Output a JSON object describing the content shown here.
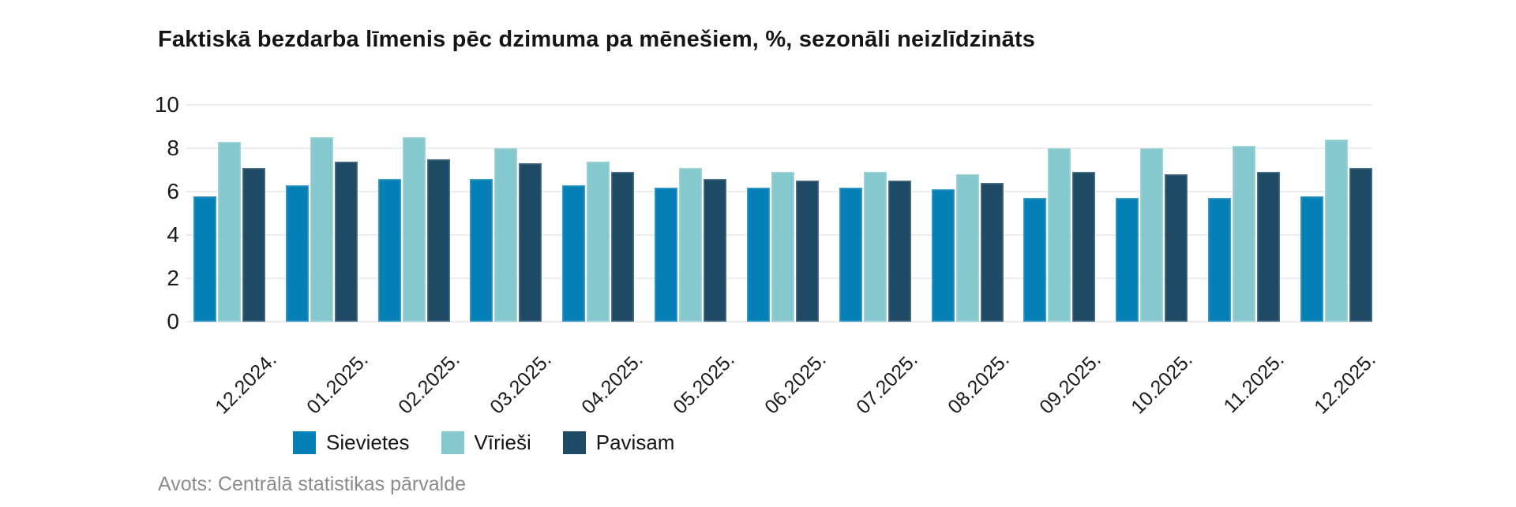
{
  "title": "Faktiskā bezdarba līmenis pēc dzimuma pa mēnešiem, %, sezonāli neizlīdzināts",
  "source": "Avots: Centrālā statistikas pārvalde",
  "colors": {
    "sievietes": "#0480b6",
    "viriesi": "#85c8cd",
    "pavisam": "#1e4a66",
    "gridline": "#ededed",
    "axis_text": "#1a1a1a",
    "source_text": "#8b8b8b",
    "background": "#ffffff"
  },
  "chart_data": {
    "type": "bar",
    "title": "Faktiskā bezdarba līmenis pēc dzimuma pa mēnešiem, %, sezonāli neizlīdzināts",
    "xlabel": "",
    "ylabel": "",
    "ylim": [
      0,
      10
    ],
    "yticks": [
      0,
      2,
      4,
      6,
      8,
      10
    ],
    "grid": true,
    "legend_position": "bottom",
    "categories": [
      "12.2024.",
      "01.2025.",
      "02.2025.",
      "03.2025.",
      "04.2025.",
      "05.2025.",
      "06.2025.",
      "07.2025.",
      "08.2025.",
      "09.2025.",
      "10.2025.",
      "11.2025.",
      "12.2025."
    ],
    "series": [
      {
        "name": "Sievietes",
        "key": "sievietes",
        "color": "#0480b6",
        "values": [
          5.8,
          6.3,
          6.6,
          6.6,
          6.3,
          6.2,
          6.2,
          6.2,
          6.1,
          5.7,
          5.7,
          5.7,
          5.8
        ]
      },
      {
        "name": "Vīrieši",
        "key": "viriesi",
        "color": "#85c8cd",
        "values": [
          8.3,
          8.5,
          8.5,
          8.0,
          7.4,
          7.1,
          6.9,
          6.9,
          6.8,
          8.0,
          8.0,
          8.1,
          8.4
        ]
      },
      {
        "name": "Pavisam",
        "key": "pavisam",
        "color": "#1e4a66",
        "values": [
          7.1,
          7.4,
          7.5,
          7.3,
          6.9,
          6.6,
          6.5,
          6.5,
          6.4,
          6.9,
          6.8,
          6.9,
          7.1
        ]
      }
    ]
  }
}
